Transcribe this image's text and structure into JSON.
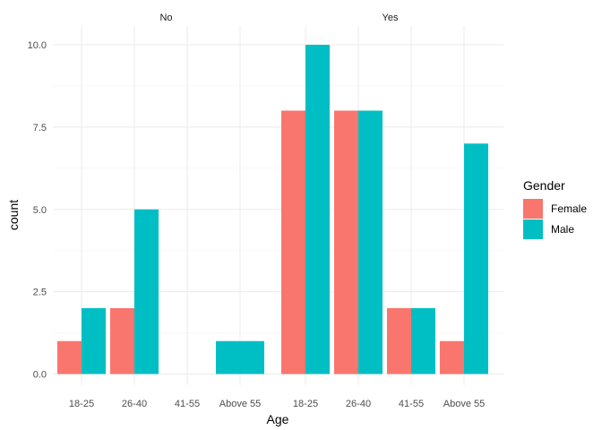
{
  "chart_data": {
    "type": "bar",
    "position": "dodge",
    "xlabel": "Age",
    "ylabel": "count",
    "ylim": [
      0,
      10.5
    ],
    "yticks": [
      "0.0",
      "2.5",
      "5.0",
      "7.5",
      "10.0"
    ],
    "categories": [
      "18-25",
      "26-40",
      "41-55",
      "Above 55"
    ],
    "legend": {
      "title": "Gender",
      "position": "right"
    },
    "series": [
      {
        "name": "Female",
        "color": "#F8766D"
      },
      {
        "name": "Male",
        "color": "#00BFC4"
      }
    ],
    "facets": [
      {
        "label": "No",
        "values": {
          "Female": [
            1,
            2,
            0,
            0
          ],
          "Male": [
            2,
            5,
            0,
            1
          ]
        }
      },
      {
        "label": "Yes",
        "values": {
          "Female": [
            8,
            8,
            2,
            1
          ],
          "Male": [
            10,
            8,
            2,
            7
          ]
        }
      }
    ],
    "grid": true
  }
}
